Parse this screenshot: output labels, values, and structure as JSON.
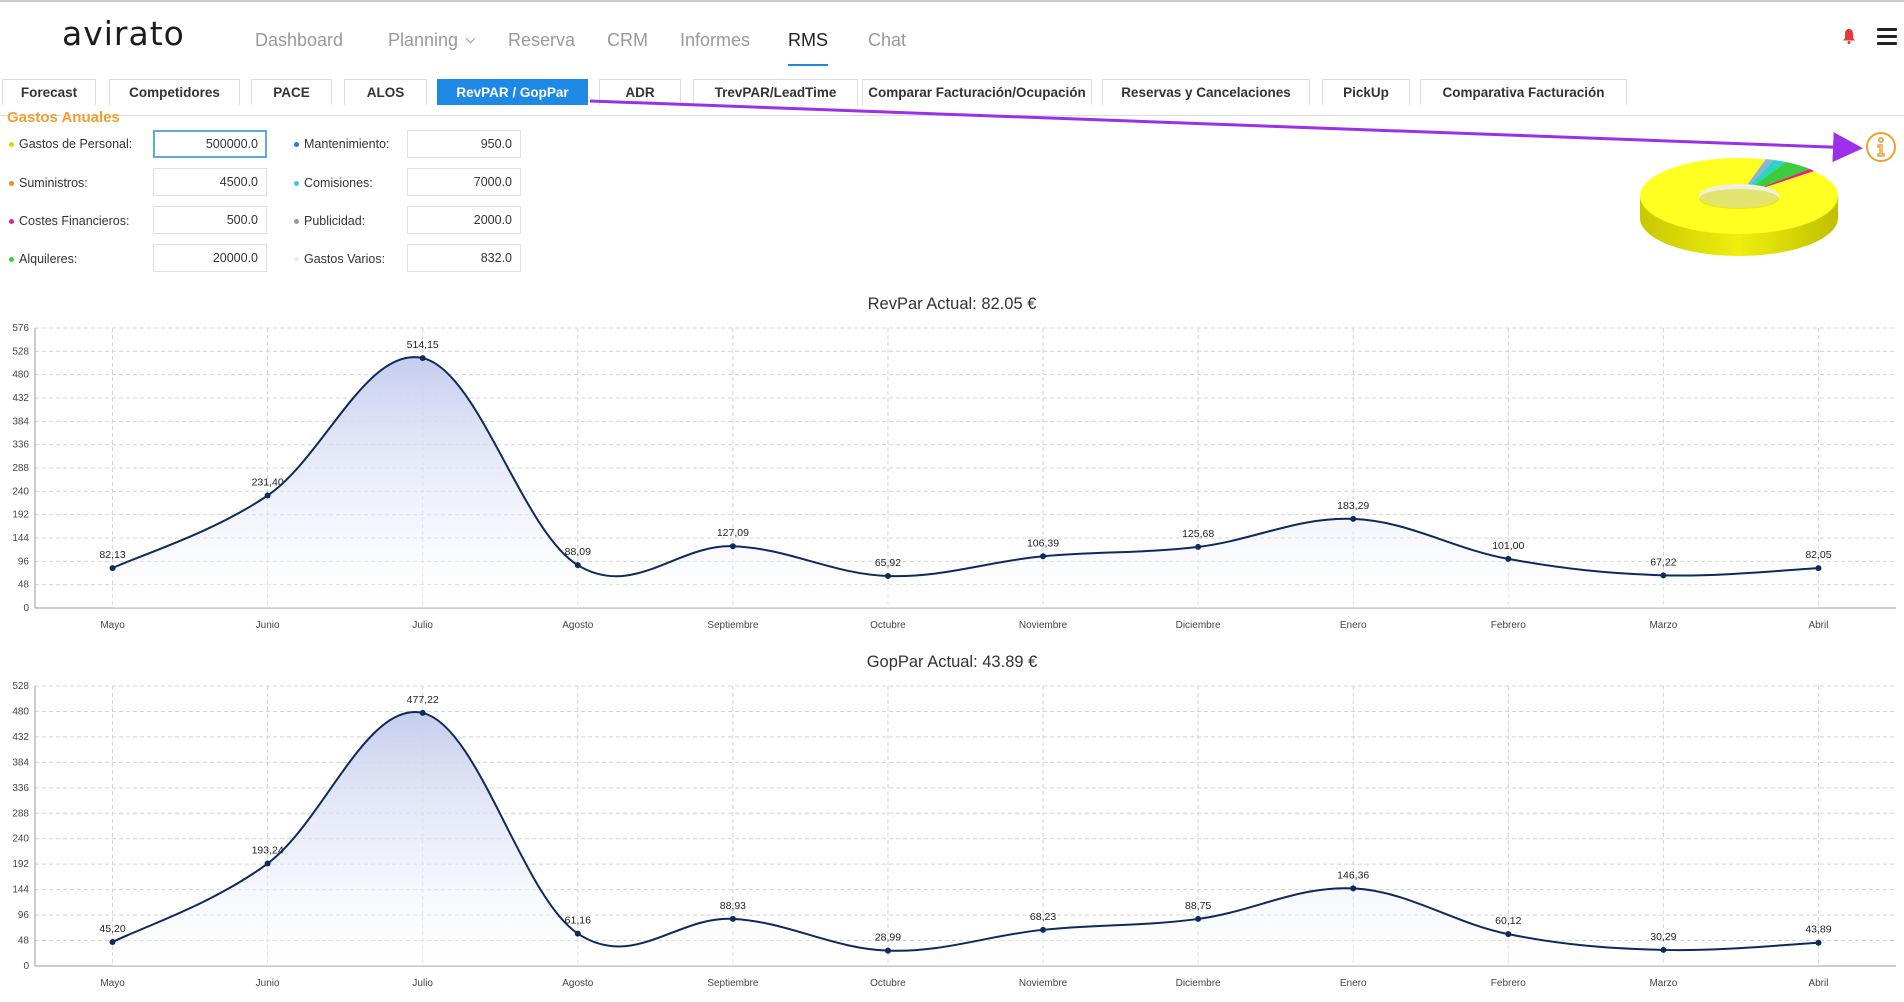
{
  "app": {
    "logo": "avirato"
  },
  "nav": {
    "items": [
      {
        "label": "Dashboard",
        "active": false
      },
      {
        "label": "Planning",
        "active": false,
        "dropdown": true
      },
      {
        "label": "Reserva",
        "active": false
      },
      {
        "label": "CRM",
        "active": false
      },
      {
        "label": "Informes",
        "active": false
      },
      {
        "label": "RMS",
        "active": true
      },
      {
        "label": "Chat",
        "active": false
      }
    ]
  },
  "tabs": [
    {
      "label": "Forecast",
      "active": false
    },
    {
      "label": "Competidores",
      "active": false
    },
    {
      "label": "PACE",
      "active": false
    },
    {
      "label": "ALOS",
      "active": false
    },
    {
      "label": "RevPAR / GopPar",
      "active": true
    },
    {
      "label": "ADR",
      "active": false
    },
    {
      "label": "TrevPAR/LeadTime",
      "active": false
    },
    {
      "label": "Comparar Facturación/Ocupación",
      "active": false
    },
    {
      "label": "Reservas y  Cancelaciones",
      "active": false
    },
    {
      "label": "PickUp",
      "active": false
    },
    {
      "label": "Comparativa Facturación",
      "active": false
    }
  ],
  "expenses": {
    "title": "Gastos Anuales",
    "items": [
      {
        "label": "Gastos de Personal:",
        "value": "500000.0",
        "color": "#e6d200"
      },
      {
        "label": "Suministros:",
        "value": "4500.0",
        "color": "#f28c28"
      },
      {
        "label": "Costes Financieros:",
        "value": "500.0",
        "color": "#e91e8c"
      },
      {
        "label": "Alquileres:",
        "value": "20000.0",
        "color": "#3ccc3c"
      },
      {
        "label": "Mantenimiento:",
        "value": "950.0",
        "color": "#1e7fd6"
      },
      {
        "label": "Comisiones:",
        "value": "7000.0",
        "color": "#2ad4c4"
      },
      {
        "label": "Publicidad:",
        "value": "2000.0",
        "color": "#999999"
      },
      {
        "label": "Gastos Varios:",
        "value": "832.0",
        "color": "#dddddd"
      }
    ]
  },
  "icons": {
    "bell": "bell-icon",
    "menu": "hamburger-menu-icon",
    "info": "info-icon",
    "alert_color": "#e53935",
    "accent": "#1e88e5",
    "annotation_arrow_color": "#9b30e8"
  },
  "chart_data": [
    {
      "type": "area",
      "title": "RevPar Actual: 82.05 €",
      "categories": [
        "Mayo",
        "Junio",
        "Julio",
        "Agosto",
        "Septiembre",
        "Octubre",
        "Noviembre",
        "Diciembre",
        "Enero",
        "Febrero",
        "Marzo",
        "Abril"
      ],
      "values": [
        82.13,
        231.4,
        514.15,
        88.09,
        127.09,
        65.92,
        106.39,
        125.68,
        183.29,
        101.0,
        67.22,
        82.05
      ],
      "data_labels": [
        "82,13",
        "231,40",
        "514,15",
        "88,09",
        "127,09",
        "65,92",
        "106,39",
        "125,68",
        "183,29",
        "101,00",
        "67,22",
        "82,05"
      ],
      "yticks": [
        0,
        48,
        96,
        144,
        192,
        240,
        288,
        336,
        384,
        432,
        480,
        528,
        576
      ],
      "ylim": [
        0,
        576
      ],
      "grid": true,
      "line_color": "#0d2a5c",
      "fill_color": "#c5cdee"
    },
    {
      "type": "area",
      "title": "GopPar Actual: 43.89 €",
      "categories": [
        "Mayo",
        "Junio",
        "Julio",
        "Agosto",
        "Septiembre",
        "Octubre",
        "Noviembre",
        "Diciembre",
        "Enero",
        "Febrero",
        "Marzo",
        "Abril"
      ],
      "values": [
        45.2,
        193.24,
        477.22,
        61.16,
        88.93,
        28.99,
        68.23,
        88.75,
        146.36,
        60.12,
        30.29,
        43.89
      ],
      "data_labels": [
        "45,20",
        "193,24",
        "477,22",
        "61,16",
        "88,93",
        "28,99",
        "68,23",
        "88,75",
        "146,36",
        "60,12",
        "30,29",
        "43,89"
      ],
      "yticks": [
        0,
        48,
        96,
        144,
        192,
        240,
        288,
        336,
        384,
        432,
        480,
        528
      ],
      "ylim": [
        0,
        528
      ],
      "grid": true,
      "line_color": "#0d2a5c",
      "fill_color": "#c5cdee"
    }
  ]
}
